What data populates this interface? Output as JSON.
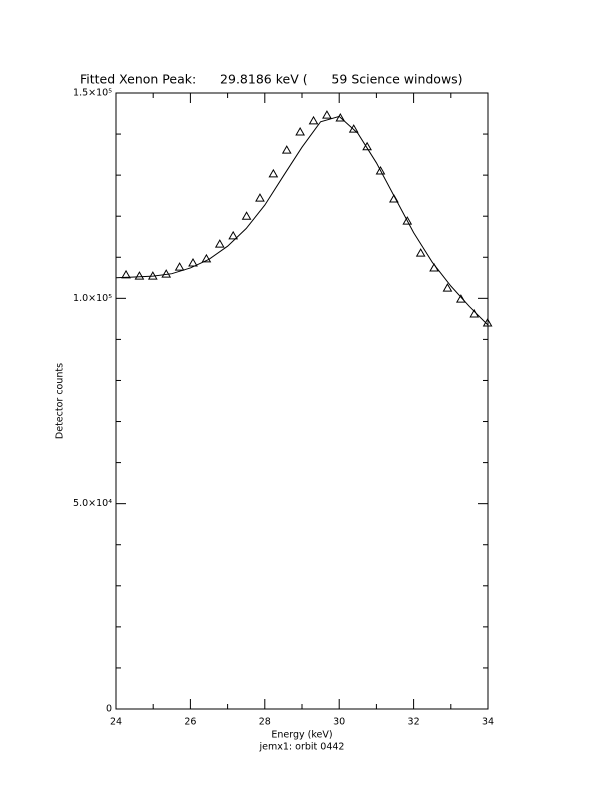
{
  "chart_data": {
    "type": "scatter",
    "title": "Fitted Xenon Peak:      29.8186 keV (      59 Science windows)",
    "x_label": "Energy (keV)",
    "y_label": "Detector counts",
    "footnote": "jemx1: orbit 0442",
    "xlim": [
      24,
      34
    ],
    "ylim": [
      0,
      150000
    ],
    "xticks": [
      24,
      26,
      28,
      30,
      32,
      34
    ],
    "xminorticks": [
      25,
      27,
      29,
      31,
      33
    ],
    "yticks": [
      0,
      {
        "value": 50000,
        "label": "5.0×10⁴"
      },
      {
        "value": 100000,
        "label": "1.0×10⁵"
      },
      {
        "value": 150000,
        "label": "1.5×10⁵"
      }
    ],
    "yminorticks": [
      10000,
      20000,
      30000,
      40000,
      60000,
      70000,
      80000,
      90000,
      110000,
      120000,
      130000,
      140000
    ],
    "series": [
      {
        "type": "scatter",
        "marker": "triangle",
        "color": "#000000",
        "x": [
          24.27,
          24.63,
          24.99,
          25.35,
          25.71,
          26.07,
          26.43,
          26.79,
          27.15,
          27.51,
          27.87,
          28.23,
          28.59,
          28.95,
          29.31,
          29.67,
          30.03,
          30.39,
          30.75,
          31.11,
          31.47,
          31.83,
          32.19,
          32.55,
          32.91,
          33.27,
          33.63,
          33.99
        ],
        "values": [
          105700,
          105400,
          105400,
          105900,
          107600,
          108600,
          109600,
          113200,
          115200,
          120000,
          124400,
          130300,
          136100,
          140500,
          143200,
          144600,
          143900,
          141200,
          136900,
          131000,
          124200,
          118800,
          111000,
          107400,
          102500,
          99800,
          96200,
          94000
        ]
      },
      {
        "type": "line",
        "color": "#000000",
        "x": [
          24,
          24.5,
          25,
          25.5,
          26,
          26.5,
          27,
          27.5,
          28,
          28.5,
          29,
          29.5,
          30,
          30.5,
          31,
          31.5,
          32,
          32.5,
          33,
          33.5,
          34
        ],
        "values": [
          105000,
          105200,
          105400,
          106000,
          107400,
          109500,
          112700,
          117000,
          122700,
          129800,
          136800,
          143000,
          144300,
          140200,
          133000,
          124500,
          116000,
          108800,
          103000,
          98000,
          93500
        ]
      }
    ]
  }
}
